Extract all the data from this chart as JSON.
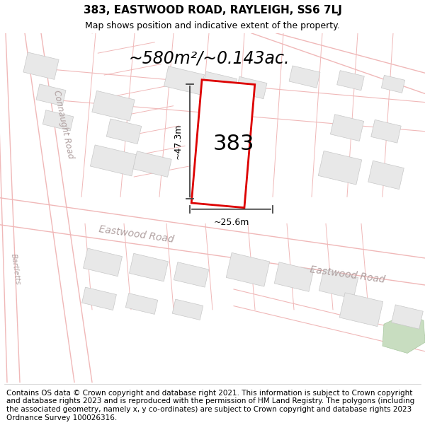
{
  "title": "383, EASTWOOD ROAD, RAYLEIGH, SS6 7LJ",
  "subtitle": "Map shows position and indicative extent of the property.",
  "footer": "Contains OS data © Crown copyright and database right 2021. This information is subject to Crown copyright and database rights 2023 and is reproduced with the permission of HM Land Registry. The polygons (including the associated geometry, namely x, y co-ordinates) are subject to Crown copyright and database rights 2023 Ordnance Survey 100026316.",
  "area_label": "~580m²/~0.143ac.",
  "property_number": "383",
  "width_label": "~25.6m",
  "height_label": "~47.3m",
  "map_bg": "#fafafa",
  "road_line_color": "#f0b8b8",
  "building_fill": "#e8e8e8",
  "building_edge": "#c8c8c8",
  "highlight_color": "#dd0000",
  "road_label_color": "#aaaaaa",
  "green_color": "#c8ddc0",
  "title_fontsize": 11,
  "subtitle_fontsize": 9,
  "footer_fontsize": 7.5,
  "area_fontsize": 17,
  "dim_fontsize": 9,
  "prop_fontsize": 22
}
